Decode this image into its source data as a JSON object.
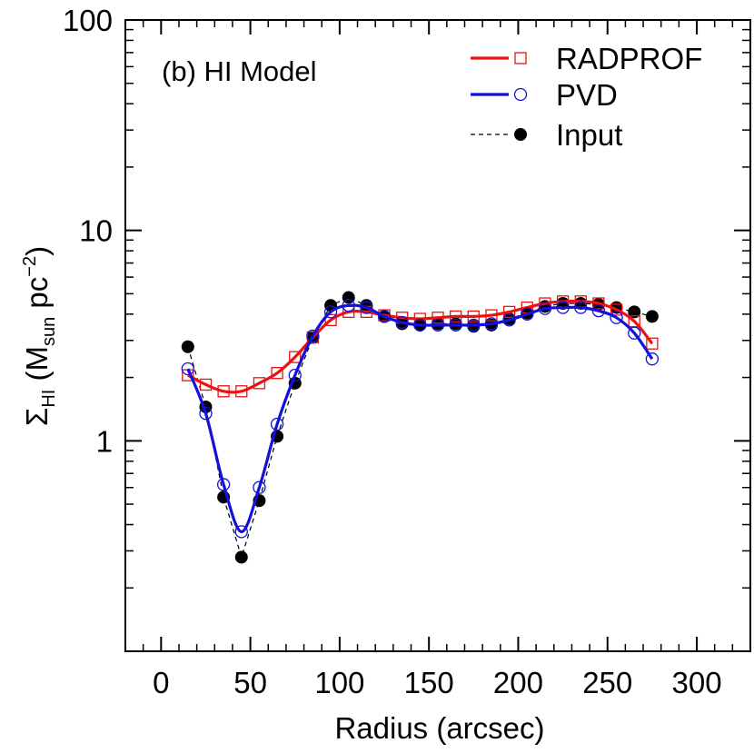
{
  "chart_data": {
    "type": "line",
    "panel_label": "(b) HI Model",
    "xlabel": "Radius (arcsec)",
    "ylabel": {
      "base": "Σ",
      "sub1": "HI",
      "mid": " (M",
      "sub2": "sun",
      "mid2": " pc",
      "sup": "−2",
      "end": ")"
    },
    "xlim": [
      -20,
      330
    ],
    "ylim": [
      0.1,
      100
    ],
    "yscale": "log",
    "x_ticks": [
      0,
      50,
      100,
      150,
      200,
      250,
      300
    ],
    "x_tick_labels": [
      "0",
      "50",
      "100",
      "150",
      "200",
      "250",
      "300"
    ],
    "y_major_ticks": [
      1,
      10,
      100
    ],
    "y_tick_labels": [
      "1",
      "10",
      "100"
    ],
    "grid": false,
    "legend_position": "top-right",
    "series": [
      {
        "name": "RADPROF",
        "color": "#ee1111",
        "marker": "open-square",
        "line": "solid",
        "x": [
          15,
          25,
          35,
          45,
          55,
          65,
          75,
          85,
          95,
          105,
          115,
          125,
          135,
          145,
          155,
          165,
          175,
          185,
          195,
          205,
          215,
          225,
          235,
          245,
          255,
          265,
          275
        ],
        "y": [
          2.05,
          1.85,
          1.72,
          1.72,
          1.88,
          2.1,
          2.5,
          3.1,
          3.75,
          4.1,
          4.1,
          3.95,
          3.85,
          3.8,
          3.85,
          3.9,
          3.9,
          3.95,
          4.1,
          4.3,
          4.5,
          4.6,
          4.6,
          4.5,
          4.2,
          3.7,
          2.9
        ]
      },
      {
        "name": "PVD",
        "color": "#1111dd",
        "marker": "open-circle",
        "line": "solid",
        "x": [
          15,
          25,
          35,
          45,
          55,
          65,
          75,
          85,
          95,
          105,
          115,
          125,
          135,
          145,
          155,
          165,
          175,
          185,
          195,
          205,
          215,
          225,
          235,
          245,
          255,
          265,
          275
        ],
        "y": [
          2.2,
          1.35,
          0.62,
          0.37,
          0.6,
          1.2,
          2.05,
          3.15,
          4.1,
          4.4,
          4.3,
          3.9,
          3.65,
          3.55,
          3.55,
          3.55,
          3.55,
          3.6,
          3.75,
          4.0,
          4.25,
          4.3,
          4.3,
          4.15,
          3.85,
          3.25,
          2.45
        ]
      },
      {
        "name": "Input",
        "color": "#000000",
        "marker": "filled-circle",
        "line": "dashed",
        "x": [
          15,
          25,
          35,
          45,
          55,
          65,
          75,
          85,
          95,
          105,
          115,
          125,
          135,
          145,
          155,
          165,
          175,
          185,
          195,
          205,
          215,
          225,
          235,
          245,
          255,
          265,
          275
        ],
        "y": [
          2.8,
          1.45,
          0.54,
          0.28,
          0.52,
          1.05,
          1.88,
          3.1,
          4.4,
          4.8,
          4.4,
          3.9,
          3.6,
          3.55,
          3.6,
          3.6,
          3.5,
          3.55,
          3.8,
          4.05,
          4.35,
          4.5,
          4.5,
          4.45,
          4.3,
          4.1,
          3.9
        ]
      }
    ]
  }
}
